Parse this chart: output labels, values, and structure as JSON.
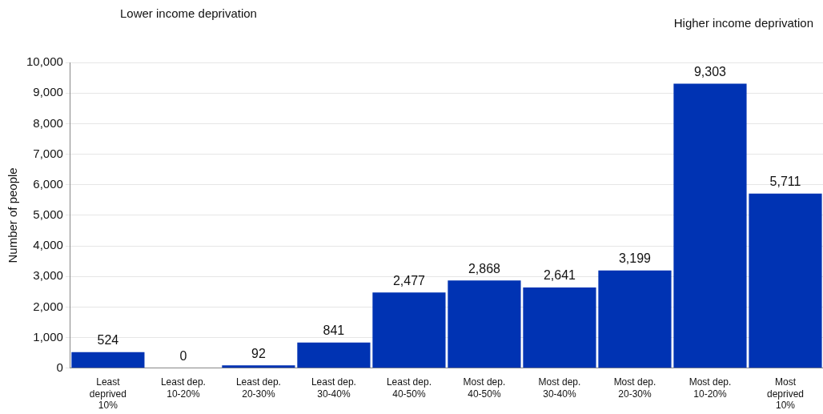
{
  "chart_data": {
    "type": "bar",
    "ylabel": "Number of people",
    "categories": [
      "Least deprived 10%",
      "Least dep. 10-20%",
      "Least dep. 20-30%",
      "Least dep. 30-40%",
      "Least dep. 40-50%",
      "Most dep. 40-50%",
      "Most dep. 30-40%",
      "Most dep. 20-30%",
      "Most dep. 10-20%",
      "Most deprived 10%"
    ],
    "values": [
      524,
      0,
      92,
      841,
      2477,
      2868,
      2641,
      3199,
      9303,
      5711
    ],
    "color": "#0033b3",
    "value_labels": [
      "524",
      "0",
      "92",
      "841",
      "2,477",
      "2,868",
      "2,641",
      "3,199",
      "9,303",
      "5,711"
    ],
    "ylim": [
      0,
      10000
    ],
    "yticks": [
      0,
      {
        "value": 1000,
        "label": "1,000"
      },
      {
        "value": 2000,
        "label": "2,000"
      },
      {
        "value": 3000,
        "label": "3,000"
      },
      {
        "value": 4000,
        "label": "4,000"
      },
      {
        "value": 5000,
        "label": "5,000"
      },
      {
        "value": 6000,
        "label": "6,000"
      },
      {
        "value": 7000,
        "label": "7,000"
      },
      {
        "value": 8000,
        "label": "8,000"
      },
      {
        "value": 9000,
        "label": "9,000"
      },
      {
        "value": 10000,
        "label": "10,000"
      }
    ],
    "grid": "y",
    "annotations": [
      "Lower income deprivation",
      "Higher income deprivation"
    ]
  }
}
